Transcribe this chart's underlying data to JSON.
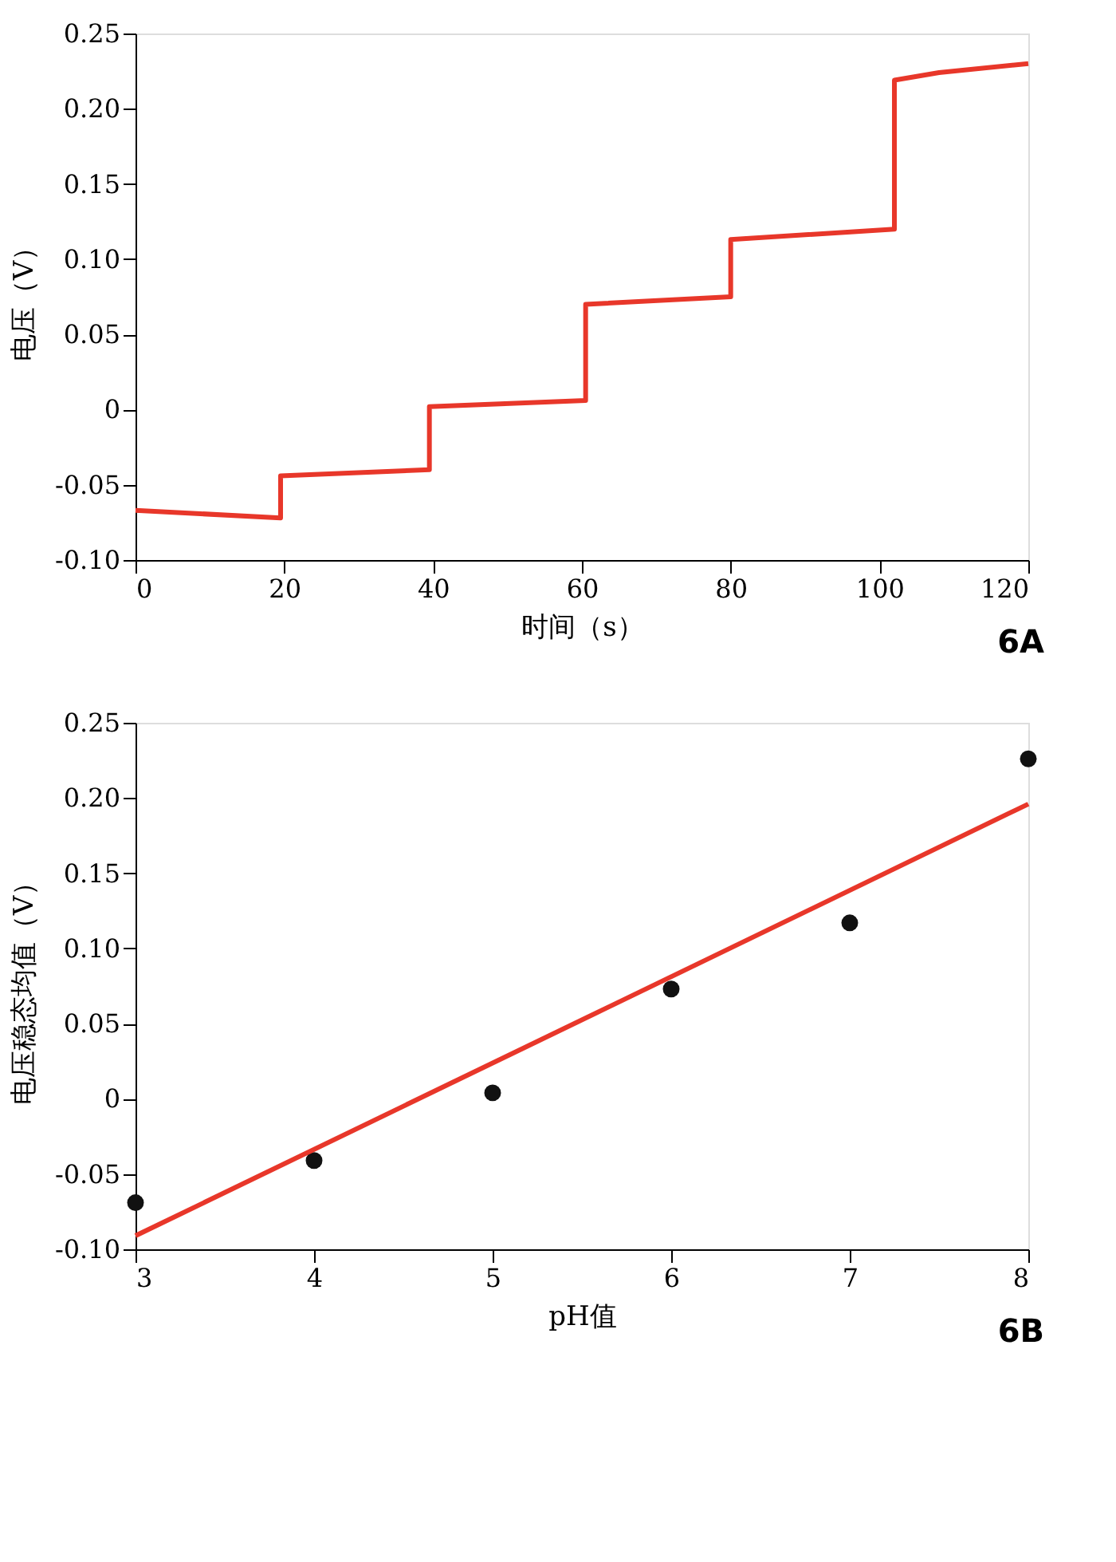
{
  "chart_data": [
    {
      "type": "line",
      "xlabel": "时间（s）",
      "ylabel": "电压（V）",
      "annotations": [
        "6A"
      ],
      "xlim": [
        0,
        120
      ],
      "xticks": [
        0,
        20,
        40,
        60,
        80,
        100,
        120
      ],
      "ylim": [
        -0.1,
        0.25
      ],
      "yticks": [
        {
          "value": -0.1,
          "label": "-0.10"
        },
        {
          "value": -0.05,
          "label": "-0.05"
        },
        0,
        {
          "value": 0.05,
          "label": "0.05"
        },
        {
          "value": 0.1,
          "label": "0.10"
        },
        {
          "value": 0.15,
          "label": "0.15"
        },
        {
          "value": 0.2,
          "label": "0.20"
        },
        {
          "value": 0.25,
          "label": "0.25"
        }
      ],
      "grid": false,
      "line_style": "solid",
      "series": [
        {
          "color": "#e8372a",
          "x": [
            0,
            19.5,
            19.5,
            39.5,
            39.5,
            60.5,
            60.5,
            80,
            80,
            102,
            102,
            108,
            120
          ],
          "values": [
            -0.067,
            -0.072,
            -0.044,
            -0.04,
            0.002,
            0.006,
            0.07,
            0.075,
            0.113,
            0.12,
            0.219,
            0.224,
            0.23
          ]
        }
      ]
    },
    {
      "type": "scatter",
      "xlabel": "pH值",
      "ylabel": "电压稳态均值（V）",
      "annotations": [
        "6B"
      ],
      "xlim": [
        3,
        8
      ],
      "xticks": [
        3,
        4,
        5,
        6,
        7,
        8
      ],
      "ylim": [
        -0.1,
        0.25
      ],
      "yticks": [
        {
          "value": -0.1,
          "label": "-0.10"
        },
        {
          "value": -0.05,
          "label": "-0.05"
        },
        0,
        {
          "value": 0.05,
          "label": "0.05"
        },
        {
          "value": 0.1,
          "label": "0.10"
        },
        {
          "value": 0.15,
          "label": "0.15"
        },
        {
          "value": 0.2,
          "label": "0.20"
        },
        {
          "value": 0.25,
          "label": "0.25"
        }
      ],
      "grid": false,
      "series": [
        {
          "marker": "circle",
          "color": "#111111",
          "x": [
            3,
            4,
            5,
            6,
            7,
            8
          ],
          "values": [
            -0.069,
            -0.041,
            0.004,
            0.073,
            0.117,
            0.226
          ]
        },
        {
          "type": "line",
          "color": "#e8372a",
          "x": [
            3,
            8
          ],
          "values": [
            -0.091,
            0.196
          ]
        }
      ]
    }
  ]
}
